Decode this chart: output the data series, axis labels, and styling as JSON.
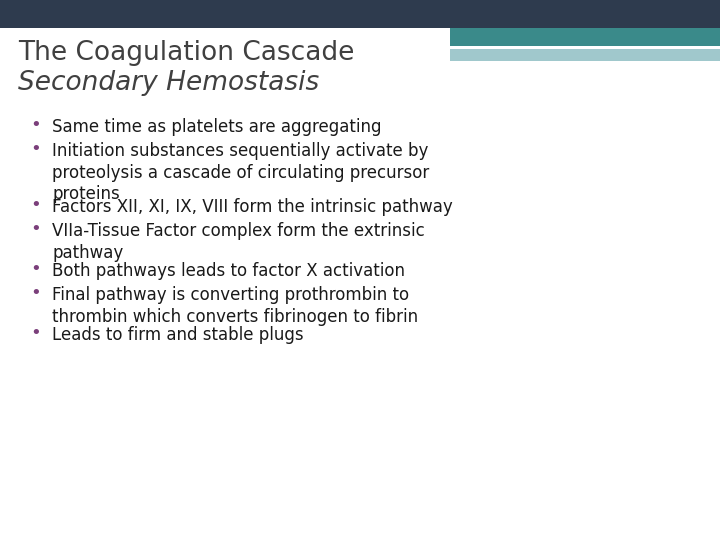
{
  "title_line1": "The Coagulation Cascade",
  "title_line2": "Secondary Hemostasis",
  "title_color": "#404040",
  "bullet_color": "#7B3F7B",
  "text_color": "#1a1a1a",
  "background_color": "#ffffff",
  "header_dark_color": "#2e3b4e",
  "header_teal_color": "#3a8a8a",
  "header_light_teal": "#a0c8cc",
  "header_pale": "#c8d8dc",
  "bullets": [
    "Same time as platelets are aggregating",
    "Initiation substances sequentially activate by\nproteolysis a cascade of circulating precursor\nproteins",
    "Factors XII, XI, IX, VIII form the intrinsic pathway",
    "VIIa-Tissue Factor complex form the extrinsic\npathway",
    "Both pathways leads to factor X activation",
    "Final pathway is converting prothrombin to\nthrombin which converts fibrinogen to fibrin",
    "Leads to firm and stable plugs"
  ],
  "font_size_title1": 19,
  "font_size_title2": 19,
  "font_size_bullets": 12,
  "bullet_marker": "•",
  "fig_width": 7.2,
  "fig_height": 5.4,
  "dpi": 100
}
